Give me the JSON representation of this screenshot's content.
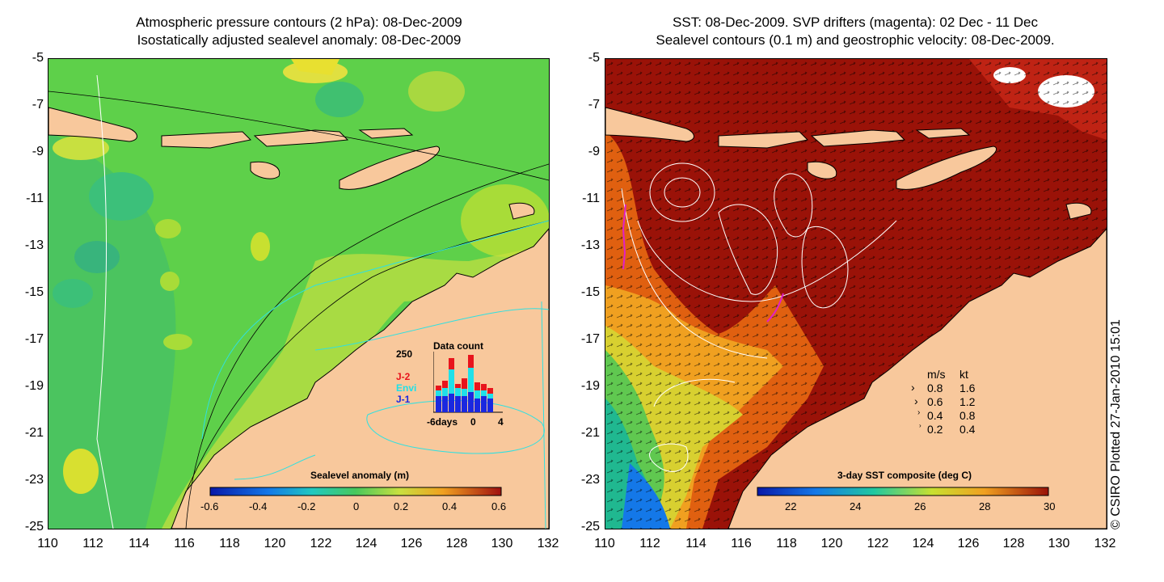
{
  "left_panel": {
    "title_line1": "Atmospheric pressure contours (2 hPa): 08-Dec-2009",
    "title_line2": "Isostatically adjusted sealevel anomaly: 08-Dec-2009",
    "colorbar": {
      "label": "Sealevel anomaly (m)",
      "ticks": [
        "-0.6",
        "-0.4",
        "-0.2",
        "0",
        "0.2",
        "0.4",
        "0.6"
      ]
    },
    "data_count": {
      "title": "Data count",
      "ymax_label": "250",
      "legend": [
        {
          "label": "J-2",
          "color": "#e8141c"
        },
        {
          "label": "Envi",
          "color": "#20e0e8"
        },
        {
          "label": "J-1",
          "color": "#1a28e0"
        }
      ],
      "x_labels": [
        "-6days",
        "0",
        "4"
      ]
    }
  },
  "right_panel": {
    "title_line1": "SST: 08-Dec-2009. SVP drifters (magenta): 02 Dec - 11 Dec",
    "title_line2": "Sealevel contours (0.1 m) and geostrophic velocity: 08-Dec-2009.",
    "colorbar": {
      "label": "3-day SST composite (deg C)",
      "ticks": [
        "22",
        "24",
        "26",
        "28",
        "30"
      ]
    },
    "velocity_legend": {
      "header_ms": "m/s",
      "header_kt": "kt",
      "rows": [
        {
          "ms": "0.8",
          "kt": "1.6"
        },
        {
          "ms": "0.6",
          "kt": "1.2"
        },
        {
          "ms": "0.4",
          "kt": "0.8"
        },
        {
          "ms": "0.2",
          "kt": "0.4"
        }
      ]
    }
  },
  "y_ticks": [
    "-5",
    "-7",
    "-9",
    "-11",
    "-13",
    "-15",
    "-17",
    "-19",
    "-21",
    "-23",
    "-25"
  ],
  "x_ticks": [
    "110",
    "112",
    "114",
    "116",
    "118",
    "120",
    "122",
    "124",
    "126",
    "128",
    "130",
    "132"
  ],
  "copyright": "© CSIRO Plotted 27-Jan-2010 15:01",
  "colors": {
    "land": "#f8c89c",
    "sst_hot": "#9a1208",
    "contour_cyan": "#30e0e0",
    "drifter": "#e020c8"
  }
}
